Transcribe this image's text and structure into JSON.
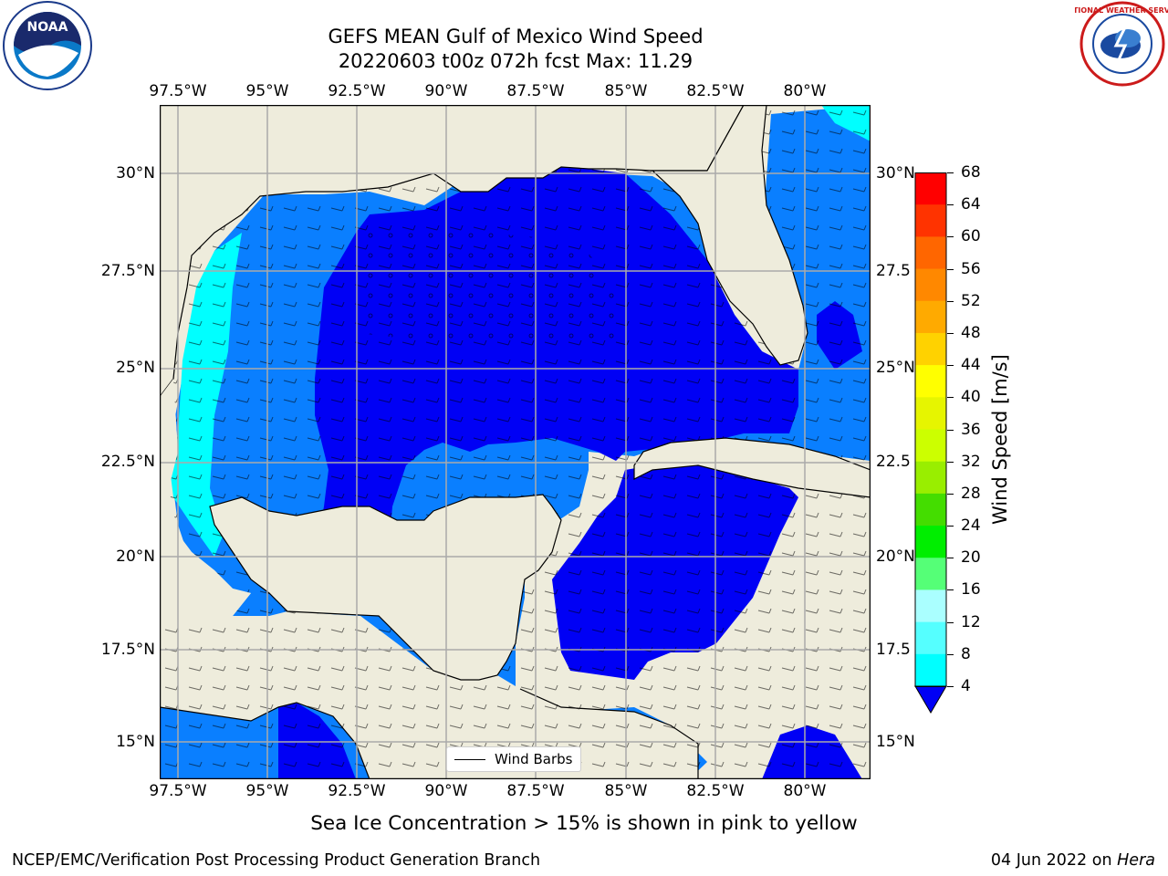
{
  "header": {
    "title_line1": "GEFS MEAN Gulf of Mexico Wind Speed",
    "title_line2": "20220603 t00z 072h fcst   Max: 11.29"
  },
  "logos": {
    "left": "NOAA",
    "right": "NATIONAL WEATHER SERVICE"
  },
  "map": {
    "lon_labels": [
      "97.5°W",
      "95°W",
      "92.5°W",
      "90°W",
      "87.5°W",
      "85°W",
      "82.5°W",
      "80°W"
    ],
    "lat_labels_left": [
      "30°N",
      "27.5°N",
      "25°N",
      "22.5°N",
      "20°N",
      "17.5°N",
      "15°N"
    ],
    "lat_labels_right": [
      "30°N",
      "27.5",
      "25°N",
      "22.5",
      "20°N",
      "17.5",
      "15°N"
    ],
    "legend_label": "Wind Barbs",
    "colors": {
      "land": "#eeecdc",
      "ocean_low": "#0000f5",
      "ocean_mid": "#0a7fff",
      "ocean_high": "#00ffff",
      "grid": "#aaaaaa"
    }
  },
  "colorbar": {
    "label": "Wind Speed [m/s]",
    "ticks": [
      "68",
      "64",
      "60",
      "56",
      "52",
      "48",
      "44",
      "40",
      "36",
      "32",
      "28",
      "24",
      "20",
      "16",
      "12",
      "8",
      "4"
    ],
    "colors": [
      "#ff0000",
      "#ff3300",
      "#ff6600",
      "#ff8800",
      "#ffaa00",
      "#ffd200",
      "#ffff00",
      "#e6f500",
      "#ccff00",
      "#99ee00",
      "#44dd00",
      "#00ee00",
      "#55ff77",
      "#aaffff",
      "#55ffff",
      "#00ffff",
      "#0a7fff"
    ],
    "extend_color": "#0000f5"
  },
  "note": "Sea Ice Concentration > 15% is shown in pink to yellow",
  "footer": {
    "left": "NCEP/EMC/Verification Post Processing Product Generation Branch",
    "date": "04 Jun 2022 on",
    "machine": "Hera"
  }
}
